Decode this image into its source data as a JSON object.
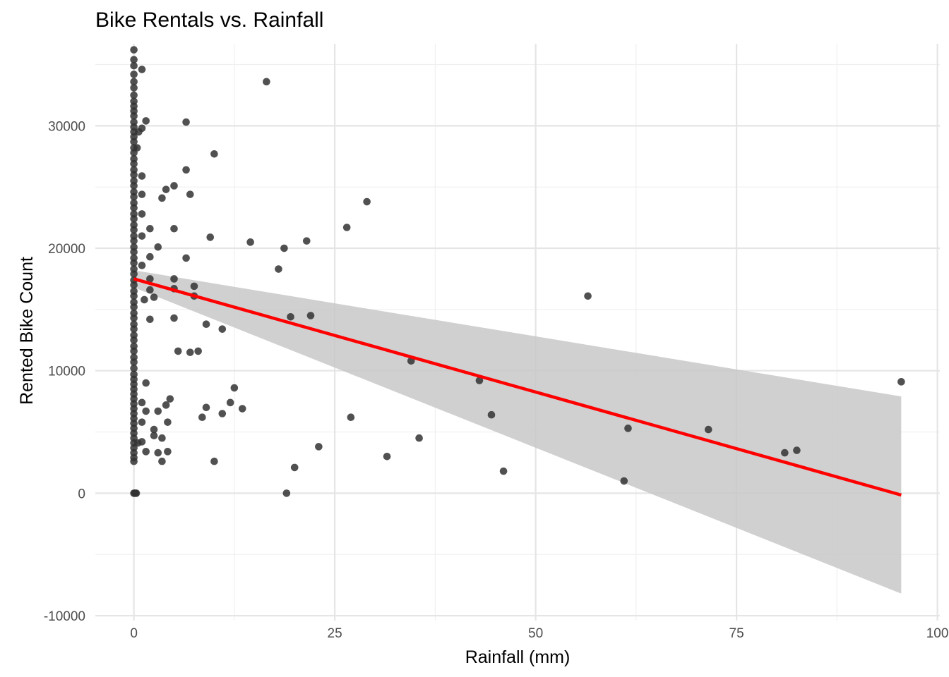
{
  "chart_data": {
    "type": "scatter",
    "title": "Bike Rentals vs. Rainfall",
    "xlabel": "Rainfall (mm)",
    "ylabel": "Rented Bike Count",
    "xlim": [
      -4.8,
      100.3
    ],
    "ylim": [
      -10400,
      36700
    ],
    "x_ticks": [
      0,
      25,
      50,
      75,
      100
    ],
    "x_tick_labels": [
      "0",
      "25",
      "50",
      "75",
      "100"
    ],
    "y_ticks": [
      -10000,
      0,
      10000,
      20000,
      30000
    ],
    "y_tick_labels": [
      "-10000",
      "0",
      "10000",
      "20000",
      "30000"
    ],
    "grid": true,
    "legend": "none",
    "colors": {
      "points": "#333333",
      "fit_line": "#ff0000",
      "confidence_band": "#c8c8c8",
      "grid": "#e5e5e5"
    },
    "fit": {
      "type": "linear",
      "x": [
        0,
        95.5
      ],
      "y": [
        17500,
        -150
      ],
      "ci_lower": [
        16800,
        -8200
      ],
      "ci_upper": [
        18200,
        7900
      ]
    },
    "series": [
      {
        "points": [
          [
            0,
            36200
          ],
          [
            0,
            35400
          ],
          [
            0,
            34900
          ],
          [
            0,
            34200
          ],
          [
            0,
            33600
          ],
          [
            0,
            33100
          ],
          [
            0,
            32500
          ],
          [
            0,
            32000
          ],
          [
            0,
            31600
          ],
          [
            0,
            31200
          ],
          [
            0,
            30800
          ],
          [
            0,
            30300
          ],
          [
            0,
            29900
          ],
          [
            0,
            29500
          ],
          [
            0,
            29100
          ],
          [
            0,
            28700
          ],
          [
            0,
            28200
          ],
          [
            0,
            27800
          ],
          [
            0,
            27300
          ],
          [
            0,
            26900
          ],
          [
            0,
            26400
          ],
          [
            0,
            26000
          ],
          [
            0,
            25500
          ],
          [
            0,
            25100
          ],
          [
            0,
            24600
          ],
          [
            0,
            24200
          ],
          [
            0,
            23700
          ],
          [
            0,
            23300
          ],
          [
            0,
            22800
          ],
          [
            0,
            22400
          ],
          [
            0,
            21900
          ],
          [
            0,
            21500
          ],
          [
            0,
            21000
          ],
          [
            0,
            20600
          ],
          [
            0,
            20100
          ],
          [
            0,
            19700
          ],
          [
            0,
            19200
          ],
          [
            0,
            18800
          ],
          [
            0,
            18300
          ],
          [
            0,
            17900
          ],
          [
            0,
            17400
          ],
          [
            0,
            17000
          ],
          [
            0,
            16500
          ],
          [
            0,
            16100
          ],
          [
            0,
            15600
          ],
          [
            0,
            15200
          ],
          [
            0,
            14700
          ],
          [
            0,
            14300
          ],
          [
            0,
            13800
          ],
          [
            0,
            13400
          ],
          [
            0,
            12900
          ],
          [
            0,
            12500
          ],
          [
            0,
            12000
          ],
          [
            0,
            11600
          ],
          [
            0,
            11100
          ],
          [
            0,
            10700
          ],
          [
            0,
            10200
          ],
          [
            0,
            9700
          ],
          [
            0,
            9300
          ],
          [
            0,
            8900
          ],
          [
            0,
            8500
          ],
          [
            0,
            8100
          ],
          [
            0,
            7700
          ],
          [
            0,
            7300
          ],
          [
            0,
            6900
          ],
          [
            0,
            6500
          ],
          [
            0,
            6100
          ],
          [
            0,
            5700
          ],
          [
            0,
            5300
          ],
          [
            0,
            4900
          ],
          [
            0,
            4500
          ],
          [
            0,
            4100
          ],
          [
            0,
            3700
          ],
          [
            0,
            3300
          ],
          [
            0,
            2900
          ],
          [
            0,
            2600
          ],
          [
            0,
            0
          ],
          [
            0.1,
            0
          ],
          [
            0.2,
            0
          ],
          [
            0.3,
            0
          ],
          [
            0.4,
            28200
          ],
          [
            0.6,
            29500
          ],
          [
            1.0,
            34600
          ],
          [
            1.0,
            29800
          ],
          [
            1.5,
            30400
          ],
          [
            1.0,
            25900
          ],
          [
            1.0,
            24400
          ],
          [
            1.0,
            22800
          ],
          [
            1.0,
            21000
          ],
          [
            1.0,
            18600
          ],
          [
            1.3,
            15800
          ],
          [
            2.0,
            17500
          ],
          [
            2.0,
            16600
          ],
          [
            2.0,
            14200
          ],
          [
            2.0,
            19300
          ],
          [
            2.0,
            21600
          ],
          [
            1.5,
            9000
          ],
          [
            1.0,
            7400
          ],
          [
            1.0,
            5800
          ],
          [
            0.5,
            4100
          ],
          [
            1.0,
            4200
          ],
          [
            1.5,
            3400
          ],
          [
            1.5,
            6700
          ],
          [
            2.5,
            16000
          ],
          [
            2.5,
            5200
          ],
          [
            2.5,
            4700
          ],
          [
            3.0,
            20100
          ],
          [
            3.0,
            6700
          ],
          [
            3.0,
            3300
          ],
          [
            3.5,
            24100
          ],
          [
            3.5,
            4500
          ],
          [
            3.5,
            2600
          ],
          [
            4.0,
            24800
          ],
          [
            4.0,
            7200
          ],
          [
            4.2,
            5800
          ],
          [
            4.2,
            3400
          ],
          [
            4.5,
            7700
          ],
          [
            5.0,
            25100
          ],
          [
            5.0,
            21600
          ],
          [
            5.0,
            17500
          ],
          [
            5.0,
            16700
          ],
          [
            5.0,
            14300
          ],
          [
            5.5,
            11600
          ],
          [
            6.5,
            30300
          ],
          [
            6.5,
            26400
          ],
          [
            6.5,
            19200
          ],
          [
            7.0,
            24400
          ],
          [
            7.0,
            11500
          ],
          [
            7.5,
            16900
          ],
          [
            7.5,
            16100
          ],
          [
            8.0,
            11600
          ],
          [
            8.5,
            6200
          ],
          [
            9.0,
            13800
          ],
          [
            9.0,
            7000
          ],
          [
            9.5,
            20900
          ],
          [
            10.0,
            27700
          ],
          [
            10.0,
            2600
          ],
          [
            11.0,
            13400
          ],
          [
            11.0,
            6500
          ],
          [
            12.0,
            7400
          ],
          [
            12.5,
            8600
          ],
          [
            13.5,
            6900
          ],
          [
            14.5,
            20500
          ],
          [
            16.5,
            33600
          ],
          [
            18.0,
            18300
          ],
          [
            18.7,
            20000
          ],
          [
            19.0,
            0
          ],
          [
            19.5,
            14400
          ],
          [
            20.0,
            2100
          ],
          [
            21.5,
            20600
          ],
          [
            22.0,
            14500
          ],
          [
            23.0,
            3800
          ],
          [
            26.5,
            21700
          ],
          [
            27.0,
            6200
          ],
          [
            29.0,
            23800
          ],
          [
            31.5,
            3000
          ],
          [
            34.5,
            10800
          ],
          [
            35.5,
            4500
          ],
          [
            43.0,
            9200
          ],
          [
            44.5,
            6400
          ],
          [
            46.0,
            1800
          ],
          [
            56.5,
            16100
          ],
          [
            61.0,
            1000
          ],
          [
            61.5,
            5300
          ],
          [
            71.5,
            5200
          ],
          [
            81.0,
            3300
          ],
          [
            82.5,
            3500
          ],
          [
            95.5,
            9100
          ]
        ]
      }
    ]
  }
}
